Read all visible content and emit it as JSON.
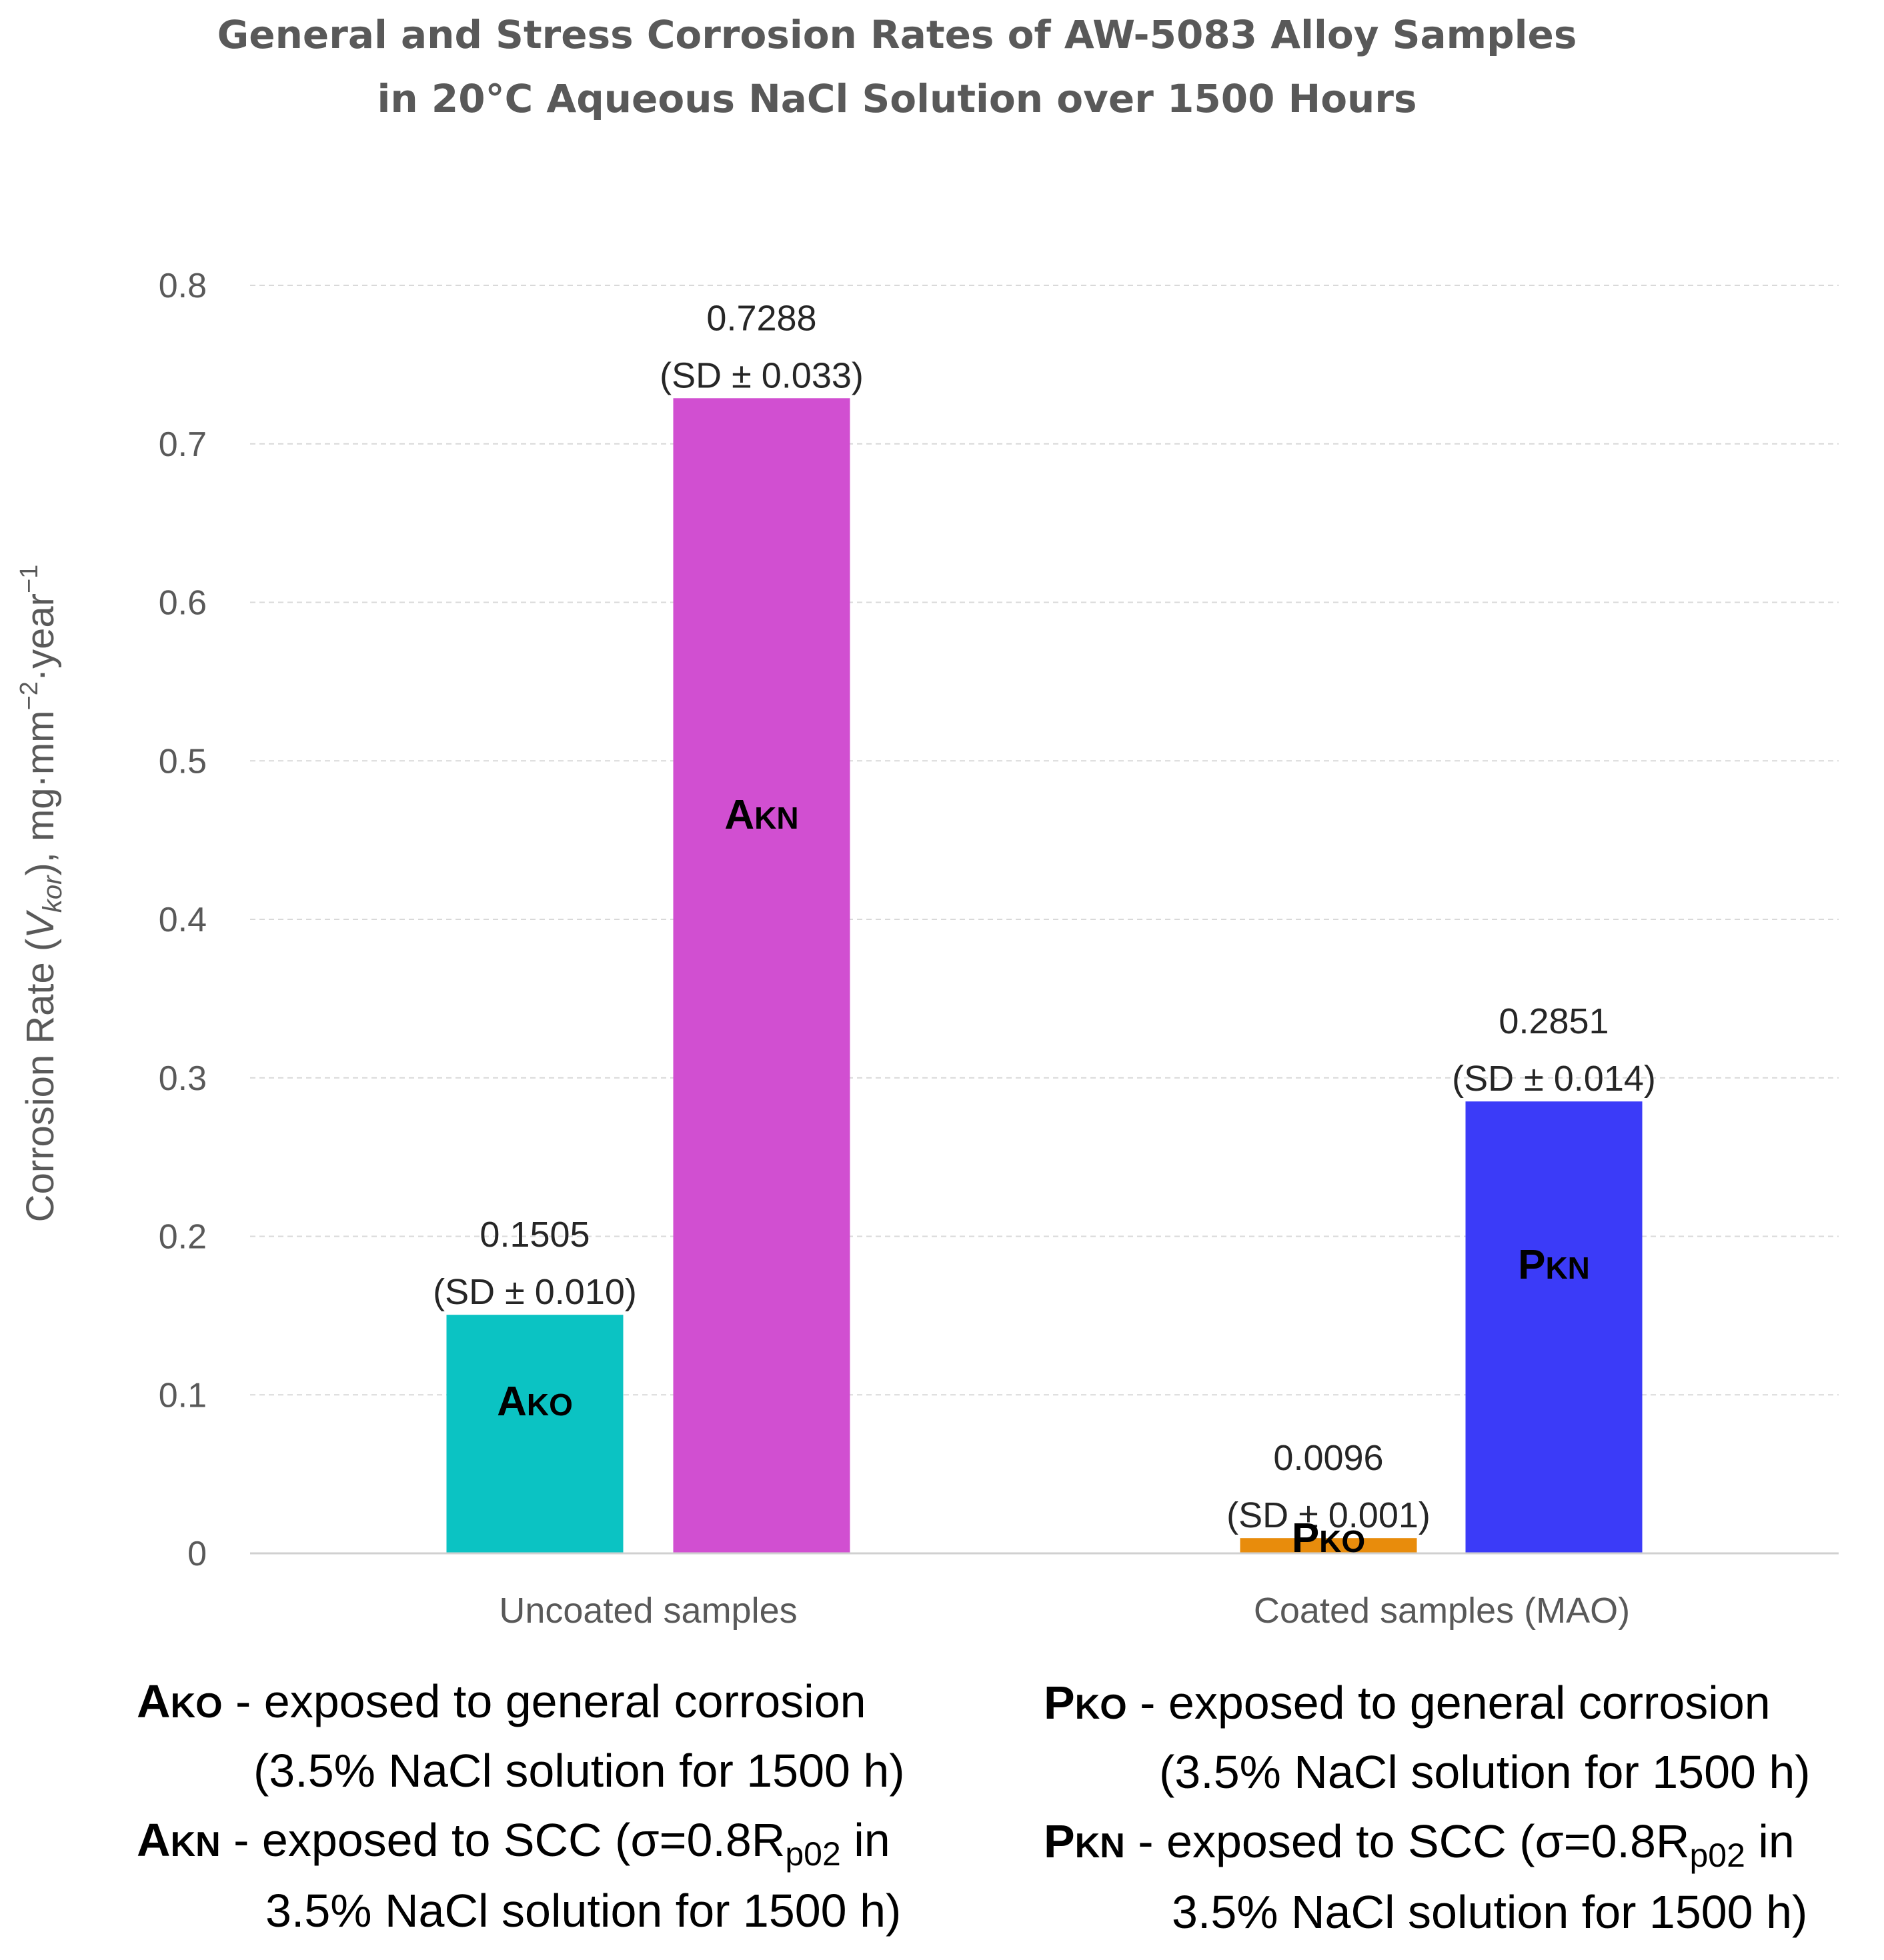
{
  "chart_data": {
    "type": "bar",
    "title_lines": [
      "General and Stress Corrosion Rates of AW-5083 Alloy Samples",
      "in 20°C Aqueous NaCl Solution over 1500 Hours"
    ],
    "ylabel": {
      "prefix": "Corrosion Rate (",
      "var_main": "V",
      "var_sub": "kor",
      "middle": "),  mg·mm",
      "exp1": "−2",
      "sep": "·year",
      "exp2": "−1"
    },
    "ylim": [
      0,
      0.8
    ],
    "yticks": [
      "0",
      "0.1",
      "0.2",
      "0.3",
      "0.4",
      "0.5",
      "0.6",
      "0.7",
      "0.8"
    ],
    "grid": true,
    "categories": [
      "Uncoated samples",
      "Coated samples (MAO)"
    ],
    "bars": [
      {
        "group": 0,
        "label_main": "A",
        "label_sub": "KO",
        "value": 0.1505,
        "value_text": "0.1505",
        "sd_text": "(SD ± 0.010)",
        "color": "#0BC3C3"
      },
      {
        "group": 0,
        "label_main": "A",
        "label_sub": "KN",
        "value": 0.7288,
        "value_text": "0.7288",
        "sd_text": "(SD ± 0.033)",
        "color": "#D14FD1"
      },
      {
        "group": 1,
        "label_main": "P",
        "label_sub": "KO",
        "value": 0.0096,
        "value_text": "0.0096",
        "sd_text": "(SD ± 0.001)",
        "color": "#E88C0C"
      },
      {
        "group": 1,
        "label_main": "P",
        "label_sub": "KN",
        "value": 0.2851,
        "value_text": "0.2851",
        "sd_text": "(SD ± 0.014)",
        "color": "#3B3BF8"
      }
    ]
  },
  "legend_notes": [
    {
      "code_main": "A",
      "code_sub": "KO",
      "dash": " - ",
      "line1": "exposed to general corrosion",
      "line2": "(3.5% NaCl solution for 1500 h)"
    },
    {
      "code_main": "A",
      "code_sub": "KN",
      "dash": " - ",
      "line1_pre": "exposed to SCC (σ=0.8R",
      "line1_sub": "p02",
      "line1_post": " in",
      "line2": "3.5% NaCl solution for 1500 h)"
    },
    {
      "code_main": "P",
      "code_sub": "KO",
      "dash": " - ",
      "line1": "exposed to general corrosion",
      "line2": "(3.5% NaCl solution for 1500 h)"
    },
    {
      "code_main": "P",
      "code_sub": "KN",
      "dash": " - ",
      "line1_pre": "exposed to SCC (σ=0.8R",
      "line1_sub": "p02",
      "line1_post": " in",
      "line2": "3.5% NaCl solution for 1500 h)"
    }
  ]
}
